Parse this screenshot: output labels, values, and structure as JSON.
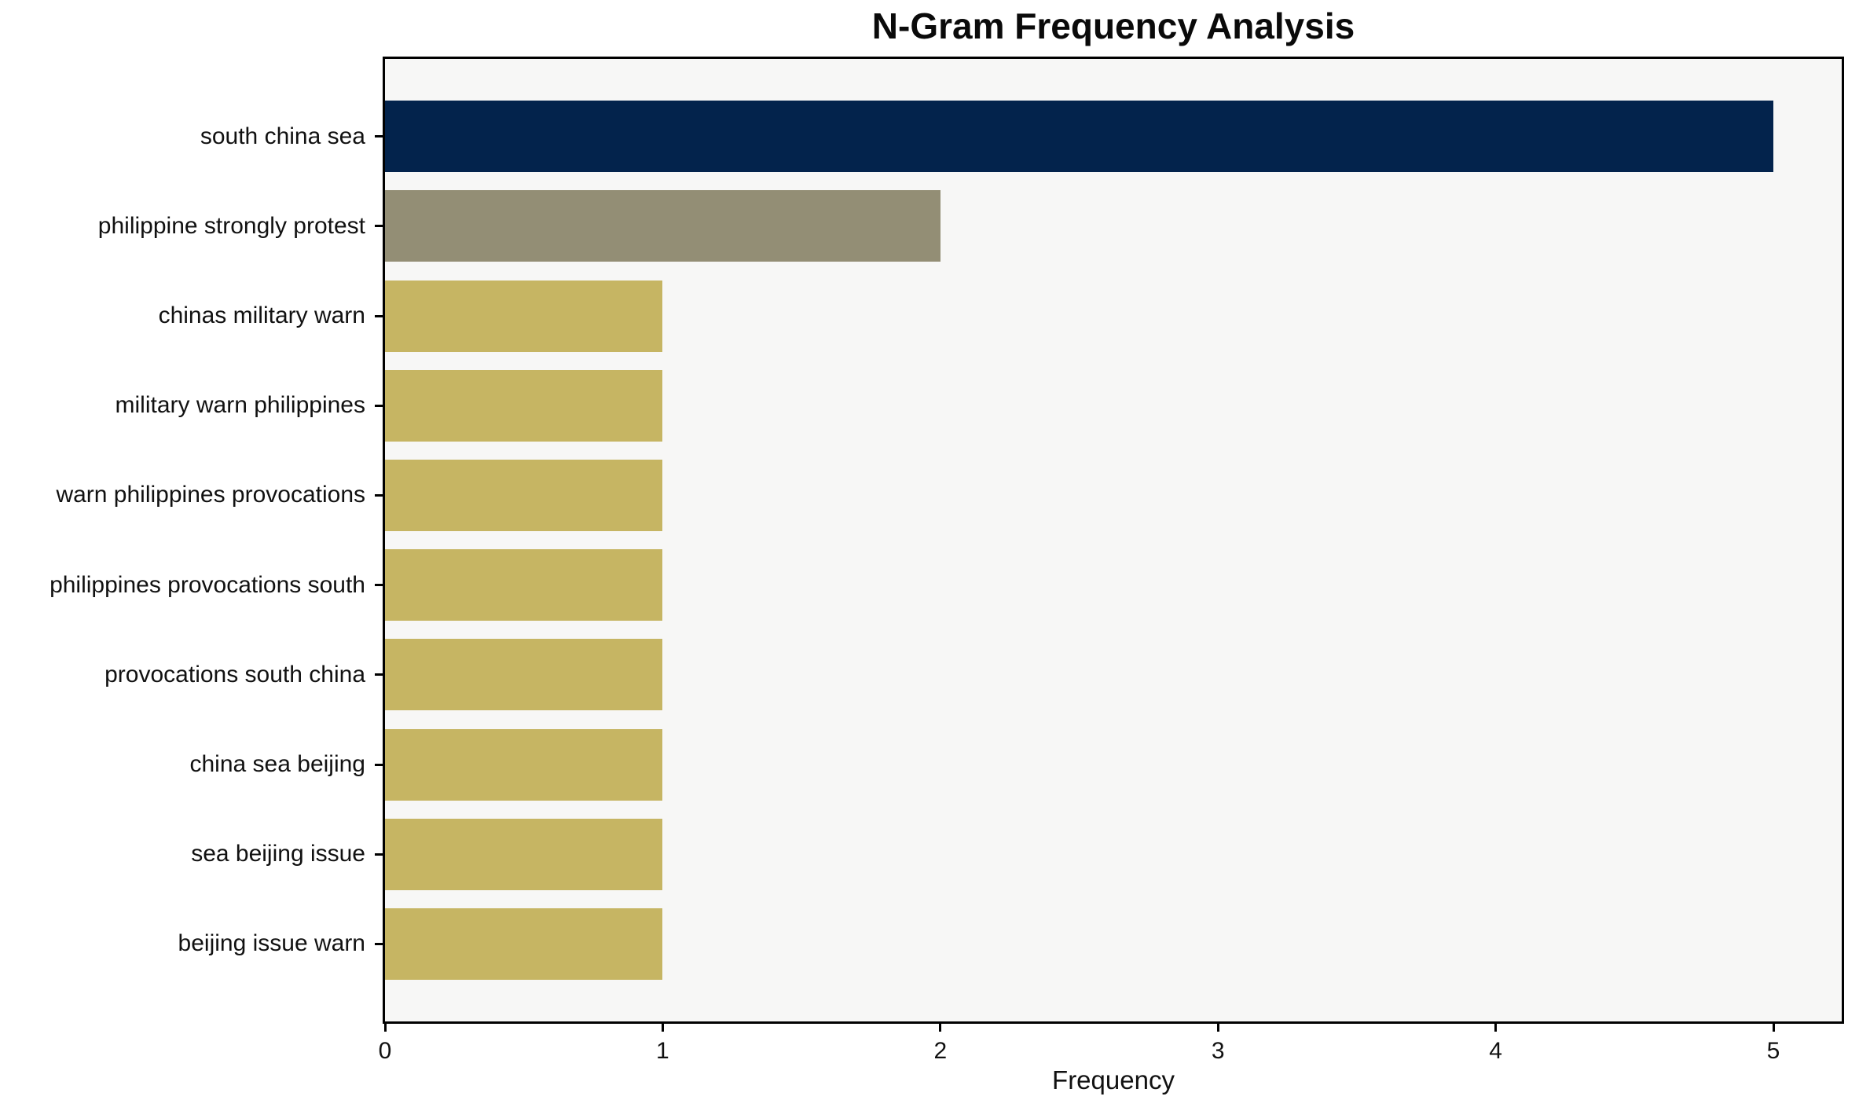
{
  "chart_data": {
    "type": "bar",
    "orientation": "horizontal",
    "title": "N-Gram Frequency Analysis",
    "xlabel": "Frequency",
    "ylabel": "",
    "categories": [
      "south china sea",
      "philippine strongly protest",
      "chinas military warn",
      "military warn philippines",
      "warn philippines provocations",
      "philippines provocations south",
      "provocations south china",
      "china sea beijing",
      "sea beijing issue",
      "beijing issue warn"
    ],
    "values": [
      5,
      2,
      1,
      1,
      1,
      1,
      1,
      1,
      1,
      1
    ],
    "bar_colors": [
      "#03234c",
      "#938e75",
      "#c6b563",
      "#c6b563",
      "#c6b563",
      "#c6b563",
      "#c6b563",
      "#c6b563",
      "#c6b563",
      "#c6b563"
    ],
    "xlim": [
      0,
      5.25
    ],
    "xticks": [
      0,
      1,
      2,
      3,
      4,
      5
    ],
    "xtick_labels": [
      "0",
      "1",
      "2",
      "3",
      "4",
      "5"
    ],
    "grid": false,
    "legend": null,
    "colors": {
      "page_background": "#ffffff",
      "plot_background": "#f7f7f6",
      "spine": "#000000",
      "text": "#111111",
      "bar_top": "#03234c",
      "bar_second": "#938e75",
      "bar_rest": "#c6b563"
    }
  }
}
